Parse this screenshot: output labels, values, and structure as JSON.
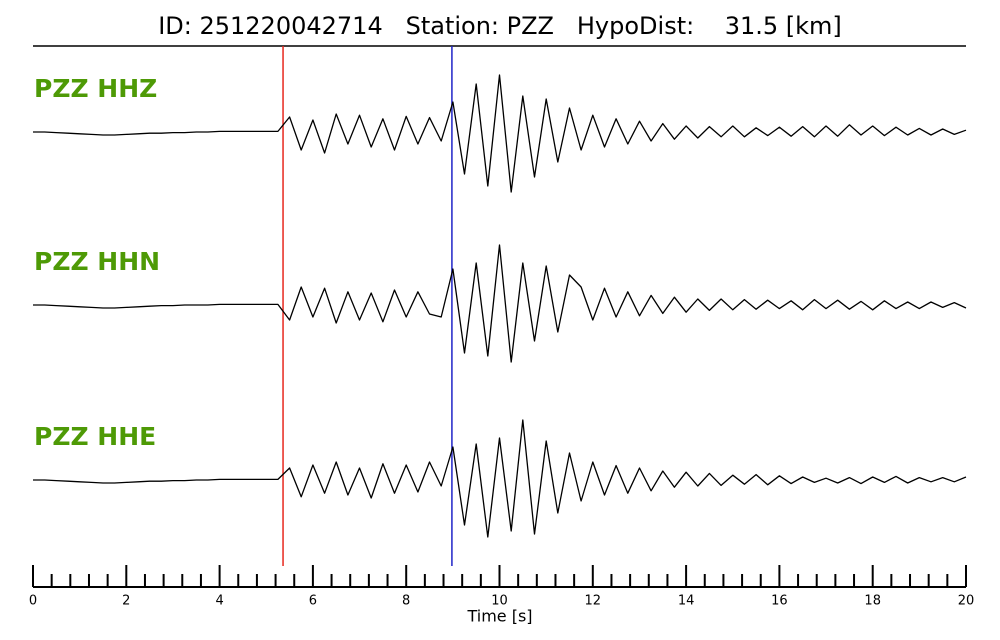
{
  "chart_data": {
    "type": "seismogram",
    "title": "ID: 251220042714   Station: PZZ   HypoDist:    31.5 [km]",
    "x_label": "Time [s]",
    "xlim": [
      0,
      20
    ],
    "xticks": [
      0,
      2,
      4,
      6,
      8,
      10,
      12,
      14,
      16,
      18,
      20
    ],
    "xminor_ticks": [
      0.4,
      0.8,
      1.2,
      1.6,
      2.4,
      2.8,
      3.2,
      3.6,
      4.4,
      4.8,
      5.2,
      5.6,
      6.4,
      6.8,
      7.2,
      7.6,
      8.4,
      8.8,
      9.2,
      9.6,
      10.4,
      10.8,
      11.2,
      11.6,
      12.4,
      12.8,
      13.2,
      13.6,
      14.4,
      14.8,
      15.2,
      15.6,
      16.4,
      16.8,
      17.2,
      17.6,
      18.4,
      18.8,
      19.2,
      19.6
    ],
    "ylim": [
      -1,
      1
    ],
    "picks": [
      {
        "x": 5.36,
        "color": "#e8281e"
      },
      {
        "x": 8.98,
        "color": "#1f24c8"
      }
    ],
    "x": [
      0,
      0.25,
      0.5,
      0.75,
      1,
      1.25,
      1.5,
      1.75,
      2,
      2.25,
      2.5,
      2.75,
      3,
      3.25,
      3.5,
      3.75,
      4,
      4.25,
      4.5,
      4.75,
      5,
      5.25,
      5.5,
      5.75,
      6,
      6.25,
      6.5,
      6.75,
      7,
      7.25,
      7.5,
      7.75,
      8,
      8.25,
      8.5,
      8.75,
      9,
      9.25,
      9.5,
      9.75,
      10,
      10.25,
      10.5,
      10.75,
      11,
      11.25,
      11.5,
      11.75,
      12,
      12.25,
      12.5,
      12.75,
      13,
      13.25,
      13.5,
      13.75,
      14,
      14.25,
      14.5,
      14.75,
      15,
      15.25,
      15.5,
      15.75,
      16,
      16.25,
      16.5,
      16.75,
      17,
      17.25,
      17.5,
      17.75,
      18,
      18.25,
      18.5,
      18.75,
      19,
      19.25,
      19.5,
      19.75,
      20
    ],
    "series": [
      {
        "name": "PZZ HHZ",
        "color": "#000000",
        "values": [
          0,
          0,
          -0.01,
          -0.02,
          -0.03,
          -0.04,
          -0.05,
          -0.05,
          -0.04,
          -0.03,
          -0.02,
          -0.02,
          -0.01,
          -0.01,
          0,
          0,
          0.01,
          0.01,
          0.01,
          0.01,
          0.01,
          0.01,
          0.25,
          -0.3,
          0.2,
          -0.35,
          0.3,
          -0.2,
          0.28,
          -0.25,
          0.22,
          -0.3,
          0.26,
          -0.2,
          0.24,
          -0.15,
          0.5,
          -0.7,
          0.8,
          -0.9,
          0.95,
          -1.0,
          0.6,
          -0.75,
          0.55,
          -0.5,
          0.4,
          -0.3,
          0.28,
          -0.25,
          0.22,
          -0.2,
          0.18,
          -0.15,
          0.14,
          -0.12,
          0.1,
          -0.1,
          0.09,
          -0.08,
          0.1,
          -0.08,
          0.07,
          -0.06,
          0.08,
          -0.07,
          0.09,
          -0.08,
          0.1,
          -0.07,
          0.12,
          -0.05,
          0.1,
          -0.06,
          0.08,
          -0.05,
          0.06,
          -0.05,
          0.05,
          -0.04,
          0.03
        ]
      },
      {
        "name": "PZZ HHN",
        "color": "#000000",
        "values": [
          0,
          0,
          -0.01,
          -0.02,
          -0.03,
          -0.04,
          -0.05,
          -0.05,
          -0.04,
          -0.03,
          -0.02,
          -0.01,
          -0.01,
          0,
          0,
          0,
          0.01,
          0.01,
          0.01,
          0.01,
          0.01,
          0.01,
          -0.25,
          0.3,
          -0.2,
          0.28,
          -0.3,
          0.22,
          -0.25,
          0.2,
          -0.28,
          0.25,
          -0.2,
          0.22,
          -0.15,
          -0.2,
          0.6,
          -0.8,
          0.7,
          -0.85,
          1.0,
          -0.95,
          0.7,
          -0.6,
          0.65,
          -0.45,
          0.5,
          0.3,
          -0.25,
          0.28,
          -0.2,
          0.22,
          -0.18,
          0.16,
          -0.14,
          0.13,
          -0.12,
          0.1,
          -0.09,
          0.1,
          -0.08,
          0.09,
          -0.07,
          0.08,
          -0.06,
          0.07,
          -0.08,
          0.09,
          -0.06,
          0.08,
          -0.07,
          0.06,
          -0.08,
          0.07,
          -0.06,
          0.05,
          -0.06,
          0.05,
          -0.04,
          0.04,
          -0.05
        ]
      },
      {
        "name": "PZZ HHE",
        "color": "#000000",
        "values": [
          0,
          0,
          -0.01,
          -0.02,
          -0.03,
          -0.04,
          -0.05,
          -0.05,
          -0.04,
          -0.03,
          -0.02,
          -0.02,
          -0.01,
          -0.01,
          0,
          0,
          0.01,
          0.01,
          0.01,
          0.01,
          0.01,
          0.01,
          0.2,
          -0.28,
          0.25,
          -0.22,
          0.3,
          -0.25,
          0.2,
          -0.3,
          0.27,
          -0.22,
          0.25,
          -0.2,
          0.3,
          -0.1,
          0.55,
          -0.75,
          0.6,
          -0.95,
          0.7,
          -0.85,
          1.0,
          -0.9,
          0.65,
          -0.55,
          0.45,
          -0.35,
          0.3,
          -0.25,
          0.24,
          -0.22,
          0.2,
          -0.18,
          0.15,
          -0.12,
          0.13,
          -0.1,
          0.11,
          -0.09,
          0.08,
          -0.07,
          0.09,
          -0.08,
          0.07,
          -0.06,
          0.05,
          -0.04,
          0.03,
          -0.05,
          0.04,
          -0.06,
          0.05,
          -0.04,
          0.06,
          -0.05,
          0.04,
          -0.03,
          0.04,
          -0.03,
          0.05
        ]
      }
    ]
  }
}
